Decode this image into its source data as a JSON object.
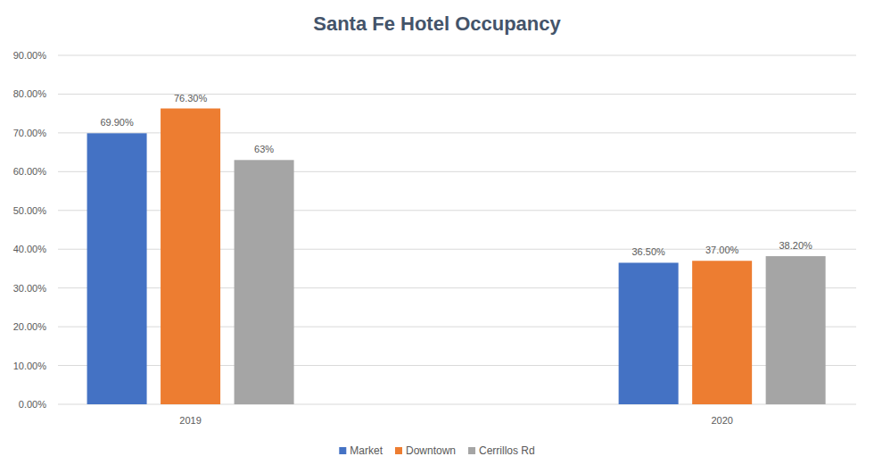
{
  "chart_data": {
    "type": "bar",
    "title": "Santa Fe Hotel Occupancy",
    "categories": [
      "2019",
      "2020"
    ],
    "series": [
      {
        "name": "Market",
        "color": "#4472c4",
        "values": [
          69.9,
          36.5
        ],
        "value_labels": [
          "69.90%",
          "36.50%"
        ]
      },
      {
        "name": "Downtown",
        "color": "#ed7d31",
        "values": [
          76.3,
          37.0
        ],
        "value_labels": [
          "76.30%",
          "37.00%"
        ]
      },
      {
        "name": "Cerrillos Rd",
        "color": "#a5a5a5",
        "values": [
          63,
          38.2
        ],
        "value_labels": [
          "63%",
          "38.20%"
        ]
      }
    ],
    "ylim": [
      0,
      90
    ],
    "yticks": [
      {
        "value": 0,
        "label": "0.00%"
      },
      {
        "value": 10,
        "label": "10.00%"
      },
      {
        "value": 20,
        "label": "20.00%"
      },
      {
        "value": 30,
        "label": "30.00%"
      },
      {
        "value": 40,
        "label": "40.00%"
      },
      {
        "value": 50,
        "label": "50.00%"
      },
      {
        "value": 60,
        "label": "60.00%"
      },
      {
        "value": 70,
        "label": "70.00%"
      },
      {
        "value": 80,
        "label": "80.00%"
      },
      {
        "value": 90,
        "label": "90.00%"
      }
    ],
    "grid": true,
    "legend": "bottom",
    "data_labels": true
  }
}
